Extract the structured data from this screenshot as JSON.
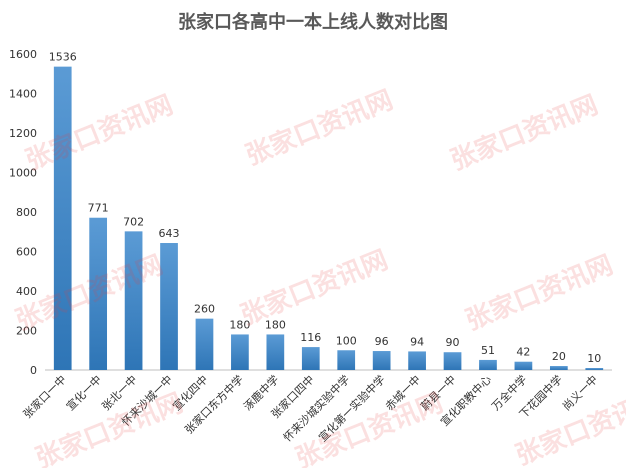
{
  "chart_data": {
    "type": "bar",
    "title": "张家口各高中一本上线人数对比图",
    "xlabel": "",
    "ylabel": "",
    "ylim": [
      0,
      1600
    ],
    "yticks": [
      0,
      200,
      400,
      600,
      800,
      1000,
      1200,
      1400,
      1600
    ],
    "grid": false,
    "categories": [
      "张家口一中",
      "宣化一中",
      "张北一中",
      "怀来沙城一中",
      "宣化四中",
      "张家口东方中学",
      "涿鹿中学",
      "张家口四中",
      "怀来沙城实验中学",
      "宣化第一实验中学",
      "赤城一中",
      "蔚县一中",
      "宣化职教中心",
      "万全中学",
      "下花园中学",
      "尚义一中"
    ],
    "values": [
      1536,
      771,
      702,
      643,
      260,
      180,
      180,
      116,
      100,
      96,
      94,
      90,
      51,
      42,
      20,
      10
    ],
    "colors": {
      "bar_top": "#5b9bd5",
      "bar_bottom": "#2e75b6",
      "axis": "#bfbfbf",
      "watermark": "#e63c3c"
    }
  },
  "watermark": {
    "text": "张家口资讯网"
  }
}
